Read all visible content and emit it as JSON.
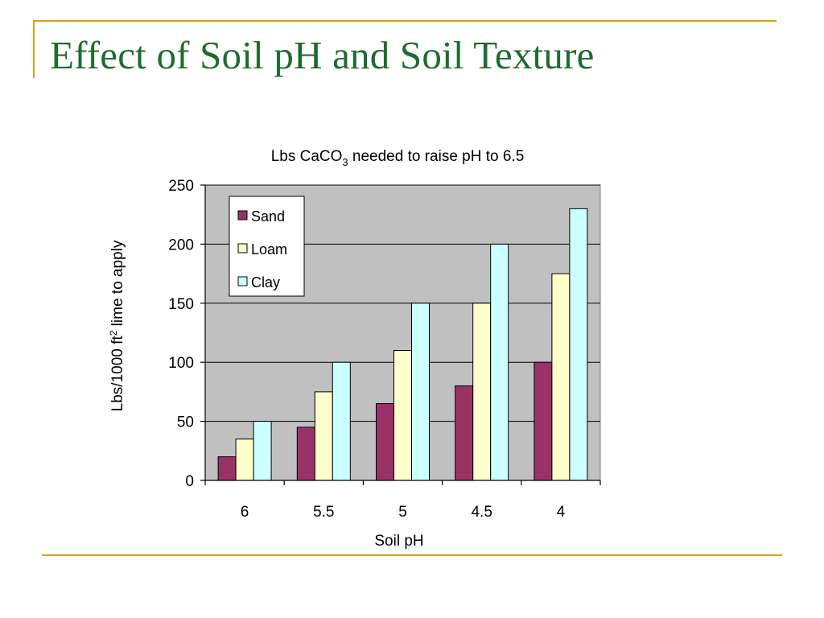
{
  "slide": {
    "title": "Effect of Soil pH and Soil Texture"
  },
  "colors": {
    "rule": "#d4a017",
    "title": "#1e6b2e",
    "plot_bg": "#c0c0c0"
  },
  "chart_data": {
    "type": "bar",
    "title": {
      "prefix": "Lbs CaCO",
      "subscript": "3",
      "suffix": " needed to raise pH to 6.5"
    },
    "xlabel": "Soil pH",
    "ylabel": {
      "prefix": "Lbs/1000 ft",
      "superscript": "2",
      "suffix": " lime to apply"
    },
    "categories": [
      "6",
      "5.5",
      "5",
      "4.5",
      "4"
    ],
    "ylim": [
      0,
      250
    ],
    "yticks": [
      0,
      50,
      100,
      150,
      200,
      250
    ],
    "grid": true,
    "legend_position": "top-left",
    "series": [
      {
        "name": "Sand",
        "color": "#993366",
        "values": [
          20,
          45,
          65,
          80,
          100
        ]
      },
      {
        "name": "Loam",
        "color": "#ffffcc",
        "values": [
          35,
          75,
          110,
          150,
          175
        ]
      },
      {
        "name": "Clay",
        "color": "#ccffff",
        "values": [
          50,
          100,
          150,
          200,
          230
        ]
      }
    ]
  }
}
